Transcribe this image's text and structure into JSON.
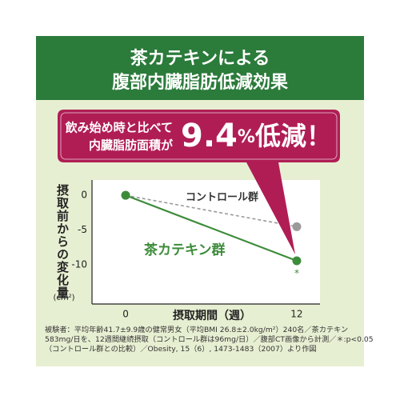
{
  "header": {
    "title_lines": [
      "茶カテキンによる",
      "腹部内臓脂肪低減効果"
    ]
  },
  "callout": {
    "lines": [
      "飲み始め時と比べて",
      "内臓脂肪面積が"
    ],
    "value": 9.4,
    "unit": "%",
    "suffix": "低減！"
  },
  "chart_data": {
    "type": "line",
    "y_label": "摂取前からの変化量",
    "y_unit": "(cm²)",
    "x_label": "摂取期間（週）",
    "x": [
      0,
      12
    ],
    "xlim": [
      -2.36,
      13.63
    ],
    "xticks": [
      0,
      12
    ],
    "ylim": [
      -15.6,
      2.2
    ],
    "yticks": [
      0,
      -5,
      -10
    ],
    "series": [
      {
        "name": "コントロール群",
        "color": "#9a9a9a",
        "dashed": true,
        "values": [
          0,
          -4.5
        ]
      },
      {
        "name": "茶カテキン群",
        "color": "#3d8c3a",
        "dashed": false,
        "values": [
          0,
          -9.4
        ]
      }
    ],
    "significance_mark": "*"
  },
  "footnote": "被験者：平均年齢41.7±9.9歳の健常男女（平均BMI 26.8±2.0kg/m²）240名／茶カテキン583mg/日を、12週間継続摂取（コントロール群は96mg/日）／腹部CT画像から計測／＊:p<0.05（コントロール群との比較）／Obesity, 15（6）, 1473-1483（2007）より作図"
}
